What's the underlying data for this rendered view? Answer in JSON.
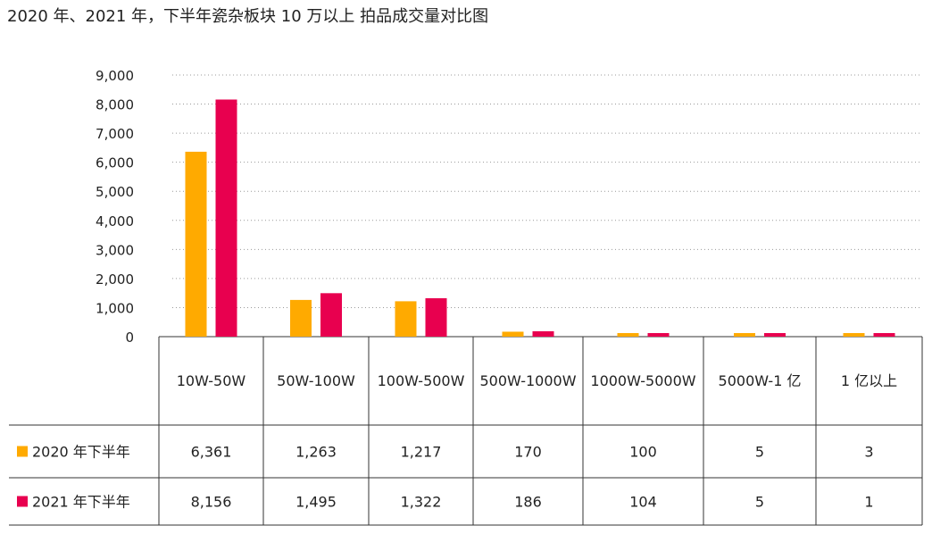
{
  "title": "2020 年、2021 年，下半年瓷杂板块 10 万以上 拍品成交量对比图",
  "chart_data": {
    "type": "bar",
    "title": "2020 年、2021 年，下半年瓷杂板块 10 万以上 拍品成交量对比图",
    "categories": [
      "10W-50W",
      "50W-100W",
      "100W-500W",
      "500W-1000W",
      "1000W-5000W",
      "5000W-1 亿",
      "1 亿以上"
    ],
    "series": [
      {
        "name": "2020 年下半年",
        "color": "#FFAA00",
        "values": [
          6361,
          1263,
          1217,
          170,
          100,
          5,
          3
        ],
        "labels": [
          "6,361",
          "1,263",
          "1,217",
          "170",
          "100",
          "5",
          "3"
        ]
      },
      {
        "name": "2021 年下半年",
        "color": "#E8004F",
        "values": [
          8156,
          1495,
          1322,
          186,
          104,
          5,
          1
        ],
        "labels": [
          "8,156",
          "1,495",
          "1,322",
          "186",
          "104",
          "5",
          "1"
        ]
      }
    ],
    "ylim": [
      0,
      9000
    ],
    "yticks": [
      0,
      1000,
      2000,
      3000,
      4000,
      5000,
      6000,
      7000,
      8000,
      9000
    ],
    "ytick_labels": [
      "0",
      "1,000",
      "2,000",
      "3,000",
      "4,000",
      "5,000",
      "6,000",
      "7,000",
      "8,000",
      "9,000"
    ],
    "grid": true,
    "data_table": true,
    "legend_position": "data-table-rows"
  }
}
